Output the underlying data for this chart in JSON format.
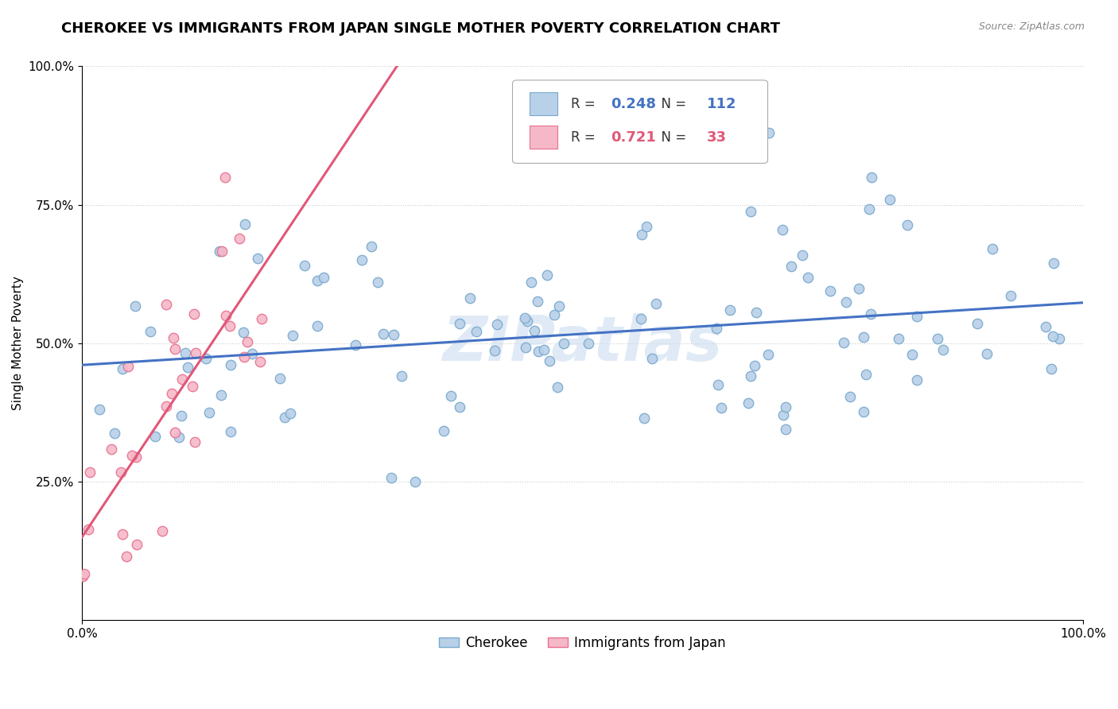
{
  "title": "CHEROKEE VS IMMIGRANTS FROM JAPAN SINGLE MOTHER POVERTY CORRELATION CHART",
  "source": "Source: ZipAtlas.com",
  "ylabel": "Single Mother Poverty",
  "watermark": "ZIPatlas",
  "legend_entries": [
    "Cherokee",
    "Immigrants from Japan"
  ],
  "cherokee_color": "#b8d0e8",
  "cherokee_edge_color": "#7aaace",
  "japan_color": "#f5b8c8",
  "japan_edge_color": "#e87090",
  "cherokee_line_color": "#4472c4",
  "japan_line_color": "#e05878",
  "R_cherokee": 0.248,
  "N_cherokee": 112,
  "R_japan": 0.721,
  "N_japan": 33,
  "title_fontsize": 13,
  "axis_label_fontsize": 11,
  "tick_fontsize": 11,
  "legend_fontsize": 12,
  "marker_size": 80
}
